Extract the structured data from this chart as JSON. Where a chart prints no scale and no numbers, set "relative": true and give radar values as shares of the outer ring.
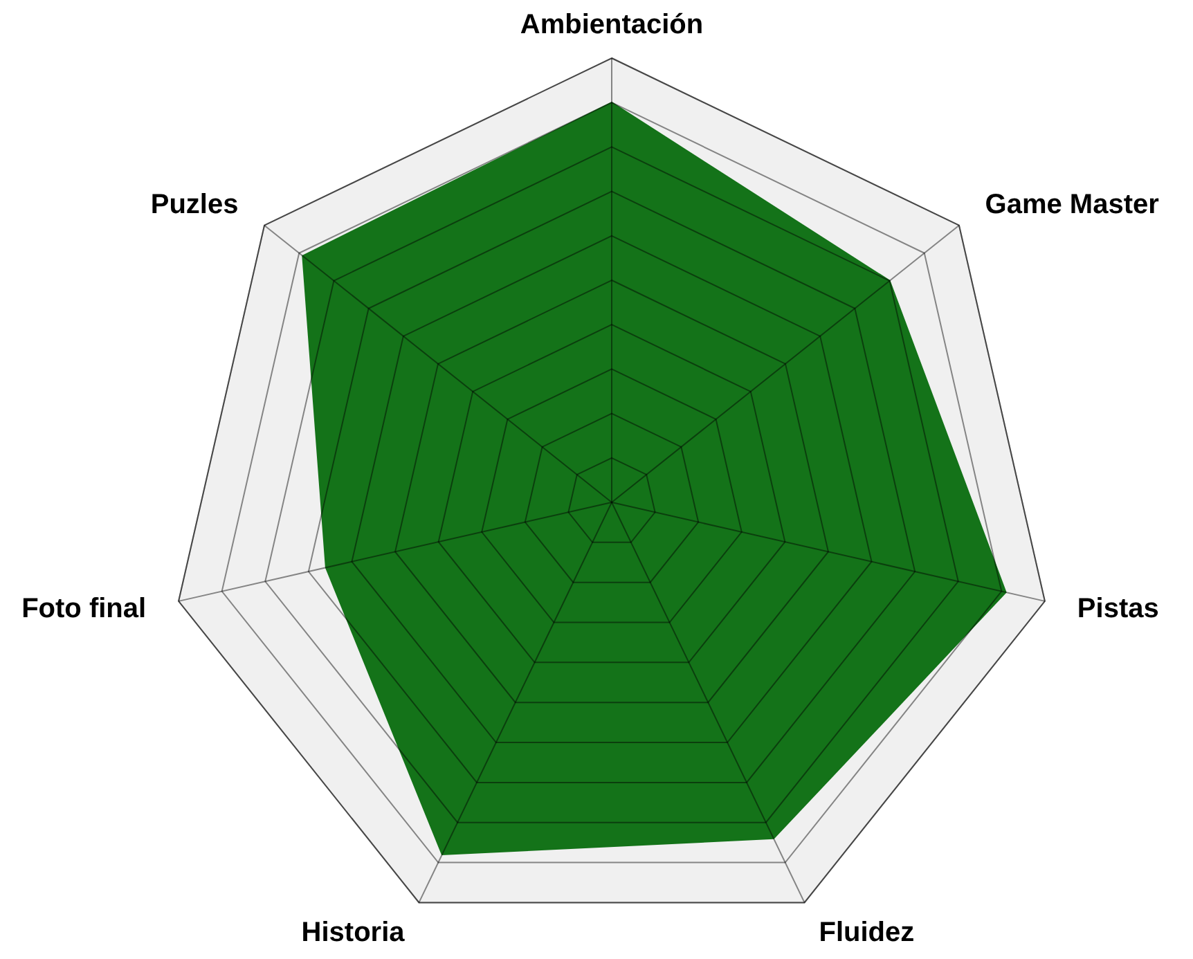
{
  "chart_data": {
    "type": "radar",
    "relative": true,
    "grid": true,
    "categories": [
      "Ambientación",
      "Game Master",
      "Pistas",
      "Fluidez",
      "Historia",
      "Foto final",
      "Puzles"
    ],
    "series": [
      {
        "color": "#147319",
        "values": [
          0.9,
          0.8,
          0.91,
          0.84,
          0.88,
          0.66,
          0.89
        ]
      }
    ]
  }
}
